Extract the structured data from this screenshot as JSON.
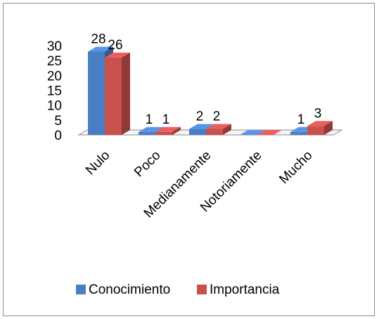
{
  "chart_data": {
    "type": "bar",
    "title": "",
    "xlabel": "",
    "ylabel": "",
    "categories": [
      "Nulo",
      "Poco",
      "Medianamente",
      "Notoriamente",
      "Mucho"
    ],
    "series": [
      {
        "name": "Conocimiento",
        "values": [
          28,
          1,
          2,
          0,
          1
        ],
        "labels": [
          "28",
          "1",
          "2",
          "",
          "1"
        ]
      },
      {
        "name": "Importancia",
        "values": [
          26,
          1,
          2,
          0,
          3
        ],
        "labels": [
          "26",
          "1",
          "2",
          "",
          "3"
        ]
      }
    ],
    "ylim": [
      0,
      30
    ],
    "yticks": [
      "0",
      "5",
      "10",
      "15",
      "20",
      "25",
      "30"
    ],
    "colors": {
      "Conocimiento": "#4a7ec4",
      "Importancia": "#c8504d"
    },
    "style": "3d-clustered-column",
    "legend_position": "bottom",
    "grid": false
  }
}
